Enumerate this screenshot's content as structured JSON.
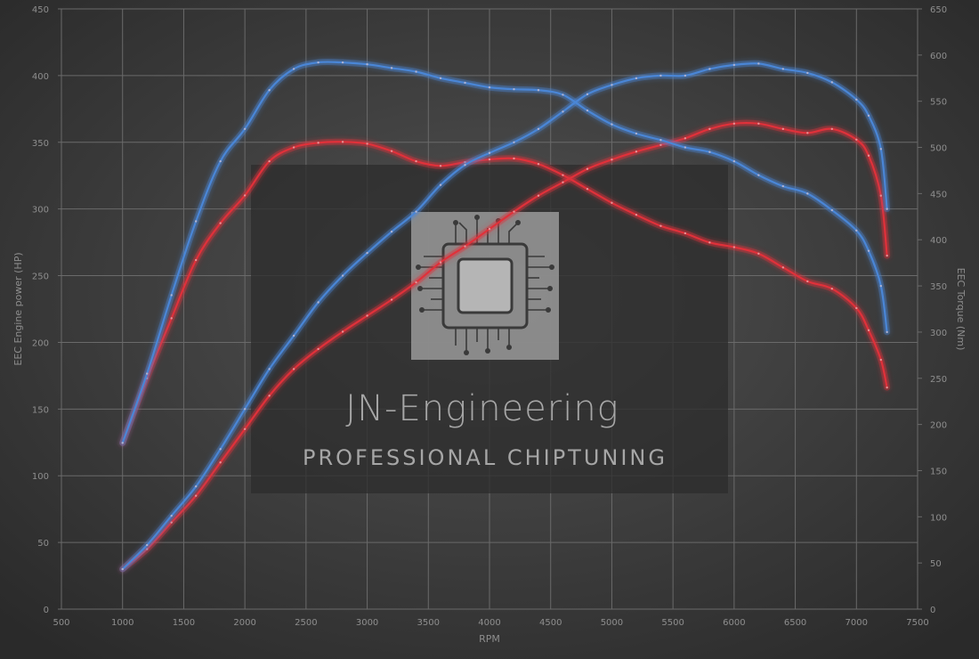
{
  "chart_data": {
    "type": "line",
    "xlabel": "RPM",
    "ylabel_left": "EEC Engine power (HP)",
    "ylabel_right": "EEC Torque (Nm)",
    "xlim": [
      500,
      7500
    ],
    "ylim_left": [
      0,
      450
    ],
    "ylim_right": [
      0,
      650
    ],
    "x_ticks": [
      500,
      1000,
      1500,
      2000,
      2500,
      3000,
      3500,
      4000,
      4500,
      5000,
      5500,
      6000,
      6500,
      7000,
      7500
    ],
    "y_ticks_left": [
      0,
      50,
      100,
      150,
      200,
      250,
      300,
      350,
      400,
      450
    ],
    "y_ticks_right": [
      0,
      50,
      100,
      150,
      200,
      250,
      300,
      350,
      400,
      450,
      500,
      550,
      600,
      650
    ],
    "grid": true,
    "series": [
      {
        "axis": "right",
        "color": "#e0313a",
        "points": [
          [
            1000,
            180
          ],
          [
            1200,
            250
          ],
          [
            1400,
            315
          ],
          [
            1600,
            378
          ],
          [
            1800,
            418
          ],
          [
            2000,
            448
          ],
          [
            2200,
            485
          ],
          [
            2400,
            500
          ],
          [
            2600,
            505
          ],
          [
            2800,
            506
          ],
          [
            3000,
            504
          ],
          [
            3200,
            496
          ],
          [
            3400,
            485
          ],
          [
            3600,
            480
          ],
          [
            3800,
            484
          ],
          [
            4000,
            487
          ],
          [
            4200,
            488
          ],
          [
            4400,
            482
          ],
          [
            4600,
            470
          ],
          [
            4800,
            455
          ],
          [
            5000,
            440
          ],
          [
            5200,
            427
          ],
          [
            5400,
            415
          ],
          [
            5600,
            407
          ],
          [
            5800,
            397
          ],
          [
            6000,
            392
          ],
          [
            6200,
            385
          ],
          [
            6400,
            370
          ],
          [
            6600,
            355
          ],
          [
            6800,
            347
          ],
          [
            7000,
            326
          ],
          [
            7100,
            302
          ],
          [
            7200,
            270
          ],
          [
            7250,
            240
          ]
        ]
      },
      {
        "axis": "left",
        "color": "#e0313a",
        "points": [
          [
            1000,
            30
          ],
          [
            1200,
            45
          ],
          [
            1400,
            65
          ],
          [
            1600,
            85
          ],
          [
            1800,
            110
          ],
          [
            2000,
            135
          ],
          [
            2200,
            160
          ],
          [
            2400,
            180
          ],
          [
            2600,
            195
          ],
          [
            2800,
            208
          ],
          [
            3000,
            220
          ],
          [
            3200,
            232
          ],
          [
            3400,
            245
          ],
          [
            3600,
            260
          ],
          [
            3800,
            272
          ],
          [
            4000,
            285
          ],
          [
            4200,
            298
          ],
          [
            4400,
            310
          ],
          [
            4600,
            320
          ],
          [
            4800,
            330
          ],
          [
            5000,
            337
          ],
          [
            5200,
            343
          ],
          [
            5400,
            348
          ],
          [
            5600,
            353
          ],
          [
            5800,
            360
          ],
          [
            6000,
            364
          ],
          [
            6200,
            364
          ],
          [
            6400,
            360
          ],
          [
            6600,
            357
          ],
          [
            6800,
            360
          ],
          [
            7000,
            352
          ],
          [
            7100,
            340
          ],
          [
            7200,
            310
          ],
          [
            7250,
            265
          ]
        ]
      },
      {
        "axis": "right",
        "color": "#4a86d6",
        "points": [
          [
            1000,
            180
          ],
          [
            1200,
            255
          ],
          [
            1400,
            340
          ],
          [
            1600,
            420
          ],
          [
            1800,
            485
          ],
          [
            2000,
            520
          ],
          [
            2200,
            562
          ],
          [
            2400,
            585
          ],
          [
            2600,
            592
          ],
          [
            2800,
            592
          ],
          [
            3000,
            590
          ],
          [
            3200,
            586
          ],
          [
            3400,
            582
          ],
          [
            3600,
            575
          ],
          [
            3800,
            570
          ],
          [
            4000,
            565
          ],
          [
            4200,
            563
          ],
          [
            4400,
            562
          ],
          [
            4600,
            557
          ],
          [
            4800,
            540
          ],
          [
            5000,
            525
          ],
          [
            5200,
            515
          ],
          [
            5400,
            508
          ],
          [
            5600,
            500
          ],
          [
            5800,
            495
          ],
          [
            6000,
            485
          ],
          [
            6200,
            470
          ],
          [
            6400,
            458
          ],
          [
            6600,
            450
          ],
          [
            6800,
            432
          ],
          [
            7000,
            410
          ],
          [
            7100,
            388
          ],
          [
            7200,
            350
          ],
          [
            7250,
            300
          ]
        ]
      },
      {
        "axis": "left",
        "color": "#4a86d6",
        "points": [
          [
            1000,
            30
          ],
          [
            1200,
            48
          ],
          [
            1400,
            70
          ],
          [
            1600,
            92
          ],
          [
            1800,
            120
          ],
          [
            2000,
            150
          ],
          [
            2200,
            180
          ],
          [
            2400,
            205
          ],
          [
            2600,
            230
          ],
          [
            2800,
            250
          ],
          [
            3000,
            267
          ],
          [
            3200,
            283
          ],
          [
            3400,
            298
          ],
          [
            3600,
            318
          ],
          [
            3800,
            333
          ],
          [
            4000,
            342
          ],
          [
            4200,
            350
          ],
          [
            4400,
            360
          ],
          [
            4600,
            373
          ],
          [
            4800,
            386
          ],
          [
            5000,
            393
          ],
          [
            5200,
            398
          ],
          [
            5400,
            400
          ],
          [
            5600,
            400
          ],
          [
            5800,
            405
          ],
          [
            6000,
            408
          ],
          [
            6200,
            409
          ],
          [
            6400,
            405
          ],
          [
            6600,
            402
          ],
          [
            6800,
            395
          ],
          [
            7000,
            382
          ],
          [
            7100,
            370
          ],
          [
            7200,
            345
          ],
          [
            7250,
            300
          ]
        ]
      }
    ]
  },
  "watermark": {
    "title": "JN-Engineering",
    "subtitle": "PROFESSIONAL CHIPTUNING"
  },
  "colors": {
    "background_center": "#525252",
    "background_edge": "#2a2a2a",
    "grid": "#6a6a6a",
    "tuned_line": "#e0313a",
    "stock_line": "#4a86d6",
    "watermark_panel": "#2c2c2c"
  }
}
